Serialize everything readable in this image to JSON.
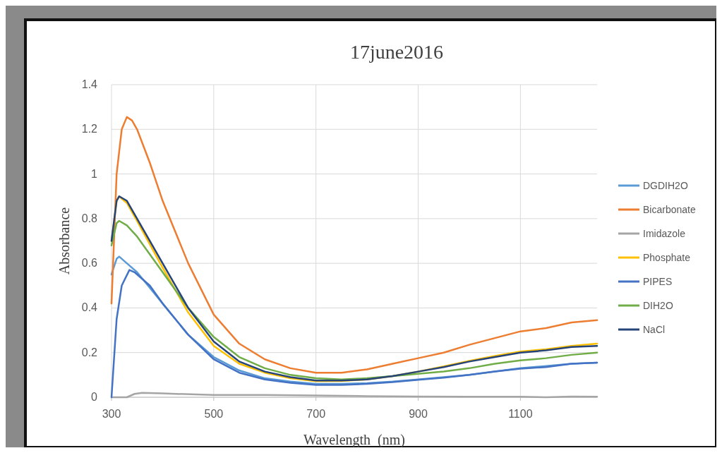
{
  "chart_data": {
    "type": "line",
    "title": "17june2016",
    "xlabel": "Wavelength  (nm)",
    "ylabel": "Absorbance",
    "xlim": [
      300,
      1250
    ],
    "xticks": [
      300,
      500,
      700,
      900,
      1100
    ],
    "ylim": [
      0,
      1.4
    ],
    "yticks": [
      0,
      0.2,
      0.4,
      0.6,
      0.8,
      1,
      1.2,
      1.4
    ],
    "grid": true,
    "legend": "right",
    "marker": "none",
    "line_style": "solid",
    "series": [
      {
        "name": "DGDIH2O",
        "color": "#5b9bd5",
        "x": [
          300,
          310,
          315,
          330,
          350,
          400,
          450,
          500,
          550,
          600,
          650,
          700,
          750,
          800,
          850,
          900,
          950,
          1000,
          1050,
          1100,
          1150,
          1200,
          1250
        ],
        "values": [
          0.55,
          0.62,
          0.63,
          0.6,
          0.56,
          0.42,
          0.28,
          0.18,
          0.12,
          0.085,
          0.07,
          0.06,
          0.06,
          0.063,
          0.07,
          0.08,
          0.09,
          0.1,
          0.115,
          0.13,
          0.14,
          0.15,
          0.155
        ]
      },
      {
        "name": "Bicarbonate",
        "color": "#ed7d31",
        "x": [
          300,
          310,
          320,
          330,
          340,
          350,
          375,
          400,
          450,
          500,
          550,
          600,
          650,
          700,
          750,
          800,
          850,
          900,
          950,
          1000,
          1050,
          1100,
          1150,
          1200,
          1250
        ],
        "values": [
          0.42,
          1.0,
          1.2,
          1.255,
          1.24,
          1.2,
          1.05,
          0.88,
          0.6,
          0.37,
          0.24,
          0.17,
          0.13,
          0.11,
          0.11,
          0.125,
          0.15,
          0.175,
          0.2,
          0.235,
          0.265,
          0.295,
          0.31,
          0.335,
          0.345
        ]
      },
      {
        "name": "Imidazole",
        "color": "#a5a5a5",
        "x": [
          300,
          330,
          345,
          360,
          400,
          500,
          600,
          700,
          800,
          900,
          1000,
          1100,
          1150,
          1200,
          1250
        ],
        "values": [
          0,
          0,
          0.015,
          0.02,
          0.017,
          0.01,
          0.01,
          0.008,
          0.005,
          0.003,
          0.002,
          0.002,
          0,
          0.003,
          0.002
        ]
      },
      {
        "name": "Phosphate",
        "color": "#ffc000",
        "x": [
          300,
          310,
          315,
          330,
          350,
          400,
          450,
          500,
          550,
          600,
          650,
          700,
          750,
          800,
          850,
          900,
          950,
          1000,
          1050,
          1100,
          1150,
          1200,
          1250
        ],
        "values": [
          0.7,
          0.88,
          0.9,
          0.87,
          0.79,
          0.58,
          0.38,
          0.23,
          0.15,
          0.11,
          0.085,
          0.072,
          0.073,
          0.08,
          0.095,
          0.115,
          0.138,
          0.163,
          0.185,
          0.205,
          0.215,
          0.23,
          0.24
        ]
      },
      {
        "name": "PIPES",
        "color": "#4472c4",
        "x": [
          300,
          310,
          320,
          335,
          345,
          375,
          400,
          450,
          500,
          550,
          600,
          650,
          700,
          750,
          800,
          850,
          900,
          950,
          1000,
          1050,
          1100,
          1150,
          1200,
          1250
        ],
        "values": [
          0,
          0.35,
          0.5,
          0.57,
          0.56,
          0.5,
          0.42,
          0.28,
          0.17,
          0.11,
          0.08,
          0.065,
          0.055,
          0.055,
          0.06,
          0.068,
          0.078,
          0.088,
          0.1,
          0.115,
          0.128,
          0.135,
          0.15,
          0.155
        ]
      },
      {
        "name": "DIH2O",
        "color": "#70ad47",
        "x": [
          300,
          310,
          315,
          330,
          350,
          400,
          450,
          500,
          550,
          600,
          650,
          700,
          750,
          800,
          850,
          900,
          950,
          1000,
          1050,
          1100,
          1150,
          1200,
          1250
        ],
        "values": [
          0.68,
          0.78,
          0.79,
          0.77,
          0.72,
          0.56,
          0.4,
          0.27,
          0.18,
          0.13,
          0.1,
          0.085,
          0.08,
          0.085,
          0.095,
          0.105,
          0.115,
          0.13,
          0.15,
          0.165,
          0.175,
          0.19,
          0.2
        ]
      },
      {
        "name": "NaCl",
        "color": "#264478",
        "x": [
          300,
          310,
          315,
          330,
          350,
          400,
          450,
          500,
          550,
          600,
          650,
          700,
          750,
          800,
          850,
          900,
          950,
          1000,
          1050,
          1100,
          1150,
          1200,
          1250
        ],
        "values": [
          0.7,
          0.88,
          0.9,
          0.88,
          0.8,
          0.6,
          0.4,
          0.25,
          0.16,
          0.115,
          0.09,
          0.075,
          0.075,
          0.08,
          0.095,
          0.115,
          0.135,
          0.16,
          0.18,
          0.2,
          0.21,
          0.225,
          0.23
        ]
      }
    ]
  }
}
